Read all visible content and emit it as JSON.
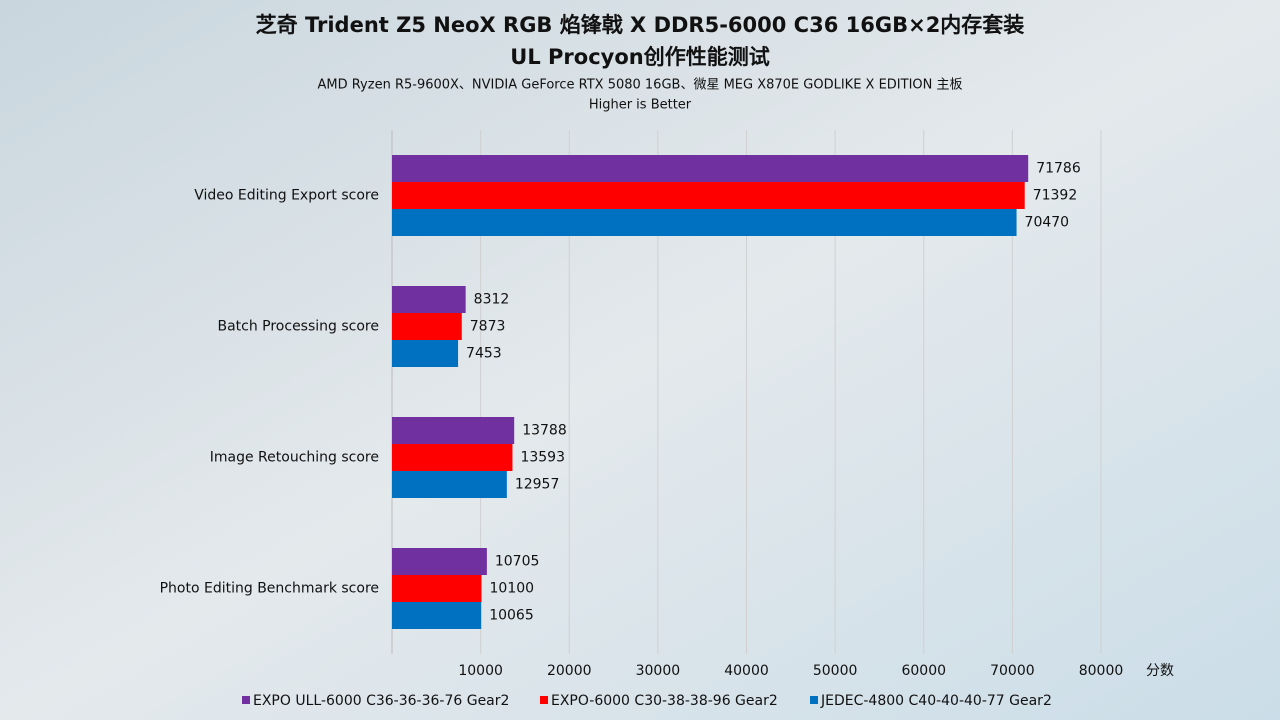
{
  "chart_data": {
    "type": "hbar",
    "title": [
      "芝奇 Trident Z5 NeoX RGB 焰锋戟 X DDR5-6000 C36 16GB×2内存套装",
      "UL Procyon创作性能测试"
    ],
    "subtitle": "AMD Ryzen R5-9600X、NVIDIA GeForce RTX 5080 16GB、微星 MEG X870E GODLIKE X EDITION 主板",
    "note": "Higher is Better",
    "xlabel": "分数",
    "categories": [
      "Video Editing Export score",
      "Batch Processing score",
      "Image Retouching score",
      "Photo Editing Benchmark score"
    ],
    "series": [
      {
        "name": "EXPO ULL-6000 C36-36-36-76 Gear2",
        "color": "#7030a0",
        "values": [
          71786,
          8312,
          13788,
          10705
        ]
      },
      {
        "name": "EXPO-6000 C30-38-38-96 Gear2",
        "color": "#ff0000",
        "values": [
          71392,
          7873,
          13593,
          10100
        ]
      },
      {
        "name": "JEDEC-4800 C40-40-40-77 Gear2",
        "color": "#0070c0",
        "values": [
          70470,
          7453,
          12957,
          10065
        ]
      }
    ],
    "xlim": [
      0,
      80000
    ],
    "xticks": [
      10000,
      20000,
      30000,
      40000,
      50000,
      60000,
      70000,
      80000
    ],
    "grid": true
  }
}
